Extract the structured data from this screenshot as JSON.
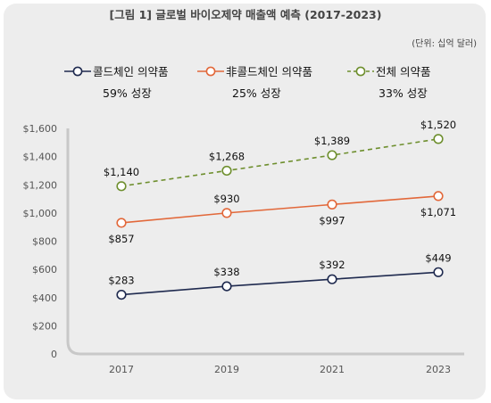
{
  "header": {
    "title": "[그림 1] 글로벌 바이오제약 매출액 예측 (2017-2023)",
    "unit_note": "(단위: 십억 달러)"
  },
  "legend": [
    {
      "name": "콜드체인 의약품",
      "growth": "59% 성장",
      "color": "#1f2a4f",
      "dash": false
    },
    {
      "name": "非콜드체인 의약품",
      "growth": "25% 성장",
      "color": "#e2683a",
      "dash": false
    },
    {
      "name": "전체 의약품",
      "growth": "33% 성장",
      "color": "#6e8f2e",
      "dash": true
    }
  ],
  "chart_data": {
    "type": "line",
    "title": "[그림 1] 글로벌 바이오제약 매출액 예측 (2017-2023)",
    "x": [
      "2017",
      "2019",
      "2021",
      "2023"
    ],
    "ylim": [
      0,
      1600
    ],
    "yticks": [
      "0",
      "$200",
      "$400",
      "$600",
      "$800",
      "$1,000",
      "$1,200",
      "$1,400",
      "$1,600"
    ],
    "series": [
      {
        "name": "콜드체인 의약품",
        "values": [
          283,
          338,
          392,
          449
        ],
        "labels": [
          "$283",
          "$338",
          "$392",
          "$449"
        ],
        "plot_values": [
          420,
          480,
          530,
          580
        ],
        "color": "#1f2a4f",
        "dash": false
      },
      {
        "name": "非콜드체인 의약품",
        "values": [
          857,
          930,
          997,
          1071
        ],
        "labels": [
          "$857",
          "$930",
          "$997",
          "$1,071"
        ],
        "plot_values": [
          930,
          1000,
          1060,
          1120
        ],
        "color": "#e2683a",
        "dash": false
      },
      {
        "name": "전체 의약품",
        "values": [
          1140,
          1268,
          1389,
          1520
        ],
        "labels": [
          "$1,140",
          "$1,268",
          "$1,389",
          "$1,520"
        ],
        "plot_values": [
          1190,
          1300,
          1410,
          1525
        ],
        "color": "#6e8f2e",
        "dash": true
      }
    ],
    "grid": false,
    "legend_position": "top"
  }
}
